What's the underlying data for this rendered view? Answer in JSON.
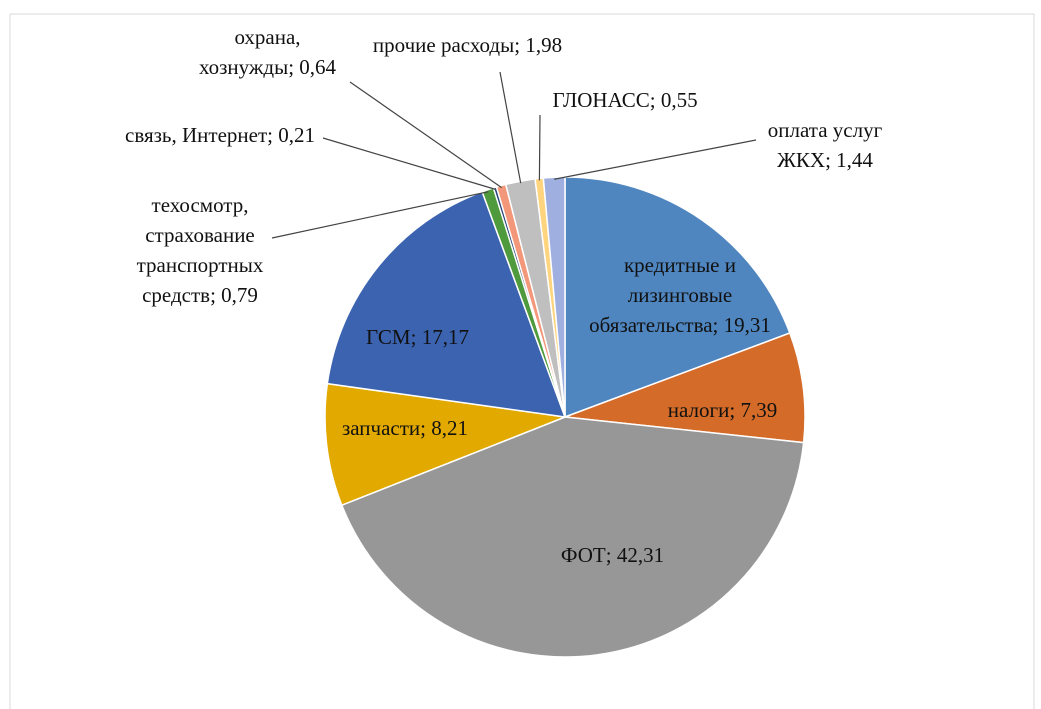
{
  "chart_data": {
    "type": "pie",
    "categories": [
      "кредитные и лизинговые обязательства",
      "налоги",
      "ФОТ",
      "запчасти",
      "ГСМ",
      "техосмотр, страхование транспортных средств",
      "связь, Интернет",
      "охрана, хознужды",
      "прочие расходы",
      "ГЛОНАСС",
      "оплата услуг ЖКХ"
    ],
    "values": [
      19.31,
      7.39,
      42.31,
      8.21,
      17.17,
      0.79,
      0.21,
      0.64,
      1.98,
      0.55,
      1.44
    ],
    "value_labels": [
      "19,31",
      "7,39",
      "42,31",
      "8,21",
      "17,17",
      "0,79",
      "0,21",
      "0,64",
      "1,98",
      "0,55",
      "1,44"
    ],
    "label_separator": "; ",
    "colors": [
      "#4f86c0",
      "#d46b28",
      "#979797",
      "#e2a900",
      "#3b63b0",
      "#4f9a3c",
      "#264478",
      "#f2977a",
      "#bfbfbf",
      "#ffd47f",
      "#9fb0e0"
    ]
  }
}
